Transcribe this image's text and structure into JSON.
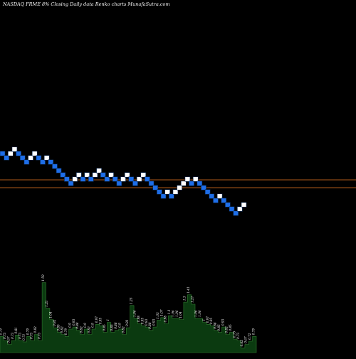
{
  "title": "NASDAQ FRME 8% Closing Daily data Renko charts MunafaSutra.com",
  "colors": {
    "background": "#000000",
    "up_brick": "#ffffff",
    "down_brick": "#1e6ee8",
    "brick_border": "#0a2a55",
    "volume_fill": "#0b3a10",
    "volume_stroke": "#2f7a2f",
    "volume_label": "#ffffff",
    "reference_line": "#b05a1a"
  },
  "chart_data": {
    "type": "renko",
    "bricks": [
      {
        "dir": "down",
        "level": 216
      },
      {
        "dir": "down",
        "level": 222
      },
      {
        "dir": "up",
        "level": 216
      },
      {
        "dir": "up",
        "level": 210
      },
      {
        "dir": "down",
        "level": 216
      },
      {
        "dir": "down",
        "level": 222
      },
      {
        "dir": "down",
        "level": 228
      },
      {
        "dir": "up",
        "level": 222
      },
      {
        "dir": "up",
        "level": 216
      },
      {
        "dir": "down",
        "level": 222
      },
      {
        "dir": "down",
        "level": 228
      },
      {
        "dir": "up",
        "level": 222
      },
      {
        "dir": "down",
        "level": 228
      },
      {
        "dir": "down",
        "level": 234
      },
      {
        "dir": "down",
        "level": 240
      },
      {
        "dir": "down",
        "level": 246
      },
      {
        "dir": "down",
        "level": 252
      },
      {
        "dir": "down",
        "level": 258
      },
      {
        "dir": "up",
        "level": 252
      },
      {
        "dir": "up",
        "level": 246
      },
      {
        "dir": "down",
        "level": 252
      },
      {
        "dir": "up",
        "level": 246
      },
      {
        "dir": "down",
        "level": 252
      },
      {
        "dir": "up",
        "level": 246
      },
      {
        "dir": "up",
        "level": 240
      },
      {
        "dir": "down",
        "level": 246
      },
      {
        "dir": "down",
        "level": 252
      },
      {
        "dir": "up",
        "level": 246
      },
      {
        "dir": "down",
        "level": 252
      },
      {
        "dir": "down",
        "level": 258
      },
      {
        "dir": "up",
        "level": 252
      },
      {
        "dir": "up",
        "level": 246
      },
      {
        "dir": "down",
        "level": 252
      },
      {
        "dir": "down",
        "level": 258
      },
      {
        "dir": "up",
        "level": 252
      },
      {
        "dir": "up",
        "level": 246
      },
      {
        "dir": "down",
        "level": 252
      },
      {
        "dir": "down",
        "level": 258
      },
      {
        "dir": "down",
        "level": 264
      },
      {
        "dir": "down",
        "level": 270
      },
      {
        "dir": "down",
        "level": 276
      },
      {
        "dir": "up",
        "level": 270
      },
      {
        "dir": "down",
        "level": 276
      },
      {
        "dir": "up",
        "level": 270
      },
      {
        "dir": "up",
        "level": 264
      },
      {
        "dir": "up",
        "level": 258
      },
      {
        "dir": "up",
        "level": 252
      },
      {
        "dir": "down",
        "level": 258
      },
      {
        "dir": "up",
        "level": 252
      },
      {
        "dir": "down",
        "level": 258
      },
      {
        "dir": "down",
        "level": 264
      },
      {
        "dir": "down",
        "level": 270
      },
      {
        "dir": "down",
        "level": 276
      },
      {
        "dir": "down",
        "level": 282
      },
      {
        "dir": "up",
        "level": 276
      },
      {
        "dir": "down",
        "level": 282
      },
      {
        "dir": "down",
        "level": 288
      },
      {
        "dir": "down",
        "level": 294
      },
      {
        "dir": "down",
        "level": 300
      },
      {
        "dir": "up",
        "level": 294
      },
      {
        "dir": "up",
        "level": 288
      }
    ],
    "reference_levels": [
      253,
      264
    ],
    "volumes": [
      {
        "value": 0.79,
        "label": "0.79"
      },
      {
        "value": 0.73,
        "label": "0.73"
      },
      {
        "value": 0.67,
        "label": "0.67"
      },
      {
        "value": 0.73,
        "label": "0.73"
      },
      {
        "value": 0.81,
        "label": "0.81"
      },
      {
        "value": 0.73,
        "label": "0.73"
      },
      {
        "value": 0.71,
        "label": "0.71"
      },
      {
        "value": 0.79,
        "label": "0.79"
      },
      {
        "value": 0.73,
        "label": "0.73"
      },
      {
        "value": 0.82,
        "label": "0.82"
      },
      {
        "value": 0.73,
        "label": "0.73"
      },
      {
        "value": 1.59,
        "label": "1.59"
      },
      {
        "value": 1.21,
        "label": "1.21"
      },
      {
        "value": 1.04,
        "label": "1.04"
      },
      {
        "value": 0.92,
        "label": "0.92"
      },
      {
        "value": 0.85,
        "label": "0.85"
      },
      {
        "value": 0.82,
        "label": "0.82"
      },
      {
        "value": 0.79,
        "label": "0.79"
      },
      {
        "value": 0.9,
        "label": "0.9"
      },
      {
        "value": 0.93,
        "label": "0.93"
      },
      {
        "value": 0.88,
        "label": "0.88"
      },
      {
        "value": 0.82,
        "label": "0.82"
      },
      {
        "value": 0.9,
        "label": "0.9"
      },
      {
        "value": 0.82,
        "label": "0.82"
      },
      {
        "value": 0.9,
        "label": "0.9"
      },
      {
        "value": 0.97,
        "label": "0.97"
      },
      {
        "value": 0.95,
        "label": "0.95"
      },
      {
        "value": 0.85,
        "label": "0.85"
      },
      {
        "value": 1.0,
        "label": "1"
      },
      {
        "value": 0.85,
        "label": "0.85"
      },
      {
        "value": 0.88,
        "label": "0.88"
      },
      {
        "value": 0.9,
        "label": "0.9"
      },
      {
        "value": 0.82,
        "label": "0.82"
      },
      {
        "value": 0.92,
        "label": "0.92"
      },
      {
        "value": 1.25,
        "label": "1.25"
      },
      {
        "value": 1.06,
        "label": "1.06"
      },
      {
        "value": 0.98,
        "label": "0.98"
      },
      {
        "value": 0.95,
        "label": "0.95"
      },
      {
        "value": 0.93,
        "label": "0.93"
      },
      {
        "value": 0.88,
        "label": "0.88"
      },
      {
        "value": 0.93,
        "label": "0.93"
      },
      {
        "value": 1.03,
        "label": "1.03"
      },
      {
        "value": 1.07,
        "label": "1.07"
      },
      {
        "value": 0.98,
        "label": "0.98"
      },
      {
        "value": 1.1,
        "label": "1.1"
      },
      {
        "value": 1.06,
        "label": "1.06"
      },
      {
        "value": 1.06,
        "label": "1.06"
      },
      {
        "value": 1.04,
        "label": "1.04"
      },
      {
        "value": 1.3,
        "label": "1.3"
      },
      {
        "value": 1.41,
        "label": "1.41"
      },
      {
        "value": 1.27,
        "label": "1.27"
      },
      {
        "value": 1.06,
        "label": "1.06"
      },
      {
        "value": 1.06,
        "label": "1.06"
      },
      {
        "value": 1.0,
        "label": "1"
      },
      {
        "value": 0.97,
        "label": "0.97"
      },
      {
        "value": 0.95,
        "label": "0.95"
      },
      {
        "value": 0.88,
        "label": "0.88"
      },
      {
        "value": 0.85,
        "label": "0.85"
      },
      {
        "value": 0.93,
        "label": "0.93"
      },
      {
        "value": 0.82,
        "label": "0.82"
      },
      {
        "value": 0.85,
        "label": "0.85"
      },
      {
        "value": 0.75,
        "label": "0.75"
      },
      {
        "value": 0.73,
        "label": "0.73"
      },
      {
        "value": 0.62,
        "label": "0.62"
      },
      {
        "value": 0.67,
        "label": "0.67"
      },
      {
        "value": 0.72,
        "label": "0.72"
      },
      {
        "value": 0.79,
        "label": "0.79"
      }
    ],
    "volume_range": [
      0.55,
      1.65
    ]
  }
}
